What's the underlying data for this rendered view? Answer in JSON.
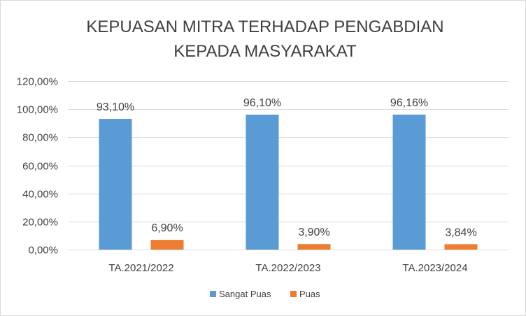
{
  "chart_data": {
    "type": "bar",
    "title": [
      "KEPUASAN MITRA TERHADAP PENGABDIAN",
      "KEPADA MASYARAKAT"
    ],
    "categories": [
      "TA.2021/2022",
      "TA.2022/2023",
      "TA.2023/2024"
    ],
    "series": [
      {
        "name": "Sangat Puas",
        "color": "#5b9bd5",
        "values": [
          93.1,
          96.1,
          96.16
        ],
        "labels": [
          "93,10%",
          "96,10%",
          "96,16%"
        ]
      },
      {
        "name": "Puas",
        "color": "#ed7d31",
        "values": [
          6.9,
          3.9,
          3.84
        ],
        "labels": [
          "6,90%",
          "3,90%",
          "3,84%"
        ]
      }
    ],
    "ylim": [
      0,
      120
    ],
    "yticks": [
      0,
      20,
      40,
      60,
      80,
      100,
      120
    ],
    "ytick_labels": [
      "0,00%",
      "20,00%",
      "40,00%",
      "60,00%",
      "80,00%",
      "100,00%",
      "120,00%"
    ],
    "grid": true,
    "legend_position": "bottom"
  }
}
